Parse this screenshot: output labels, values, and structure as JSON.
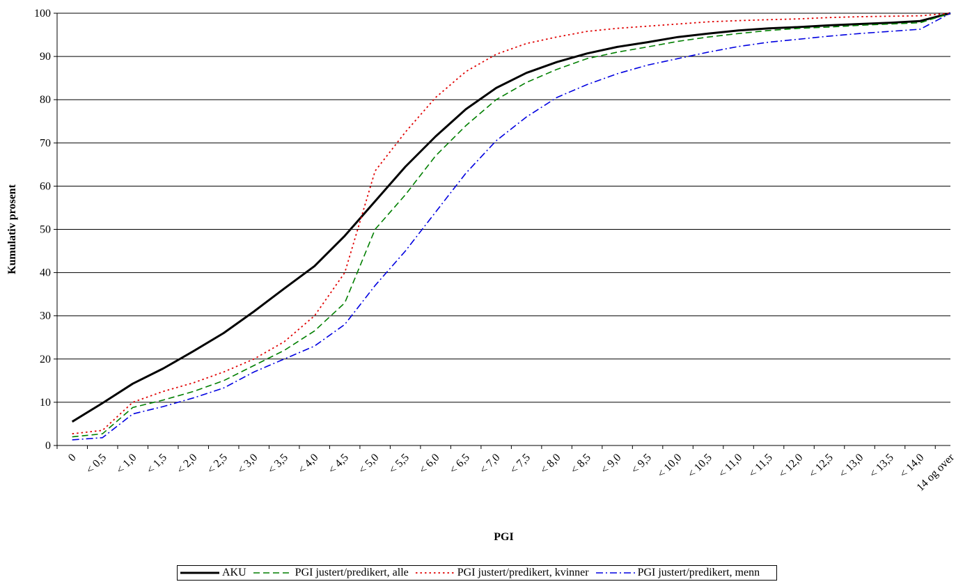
{
  "chart_data": {
    "type": "line",
    "title": "",
    "xlabel": "PGI",
    "ylabel": "Kumulativ prosent",
    "ylim": [
      0,
      100
    ],
    "yticks": [
      0,
      10,
      20,
      30,
      40,
      50,
      60,
      70,
      80,
      90,
      100
    ],
    "grid": true,
    "legend_position": "bottom",
    "categories": [
      "0",
      "< 0,5",
      "< 1,0",
      "< 1,5",
      "< 2,0",
      "< 2,5",
      "< 3,0",
      "< 3,5",
      "< 4,0",
      "< 4,5",
      "< 5,0",
      "< 5,5",
      "< 6,0",
      "< 6,5",
      "< 7,0",
      "< 7,5",
      "< 8,0",
      "< 8,5",
      "< 9,0",
      "< 9,5",
      "< 10,0",
      "< 10,5",
      "< 11,0",
      "< 11,5",
      "< 12,0",
      "< 12,5",
      "< 13,0",
      "< 13,5",
      "< 14,0",
      "14 og over"
    ],
    "series": [
      {
        "name": "AKU",
        "color": "#000000",
        "dash": "solid",
        "values": [
          5.5,
          9.8,
          14.3,
          17.8,
          21.8,
          26.0,
          31.0,
          36.3,
          41.5,
          48.5,
          56.5,
          64.5,
          71.5,
          77.8,
          82.7,
          86.2,
          88.7,
          90.7,
          92.2,
          93.3,
          94.5,
          95.3,
          96.0,
          96.5,
          96.8,
          97.2,
          97.5,
          97.8,
          98.2,
          100.0
        ]
      },
      {
        "name": "PGI justert/predikert, alle",
        "color": "#007f00",
        "dash": "dashed",
        "values": [
          2.0,
          2.7,
          8.8,
          10.5,
          12.5,
          15.0,
          18.5,
          22.0,
          26.5,
          33.0,
          50.0,
          58.0,
          67.0,
          74.0,
          80.0,
          84.0,
          87.0,
          89.5,
          91.0,
          92.2,
          93.5,
          94.5,
          95.3,
          96.0,
          96.5,
          96.8,
          97.2,
          97.5,
          97.8,
          100.0
        ]
      },
      {
        "name": "PGI justert/predikert, kvinner",
        "color": "#e00000",
        "dash": "dotted",
        "values": [
          2.7,
          3.5,
          10.0,
          12.5,
          14.5,
          17.0,
          20.0,
          24.0,
          30.0,
          40.0,
          63.5,
          72.5,
          80.5,
          86.5,
          90.5,
          93.0,
          94.5,
          95.8,
          96.5,
          97.0,
          97.5,
          98.0,
          98.3,
          98.5,
          98.7,
          99.0,
          99.2,
          99.3,
          99.4,
          100.0
        ]
      },
      {
        "name": "PGI justert/predikert, menn",
        "color": "#0000e0",
        "dash": "dashdot",
        "values": [
          1.3,
          1.8,
          7.3,
          9.0,
          11.0,
          13.3,
          17.0,
          20.0,
          23.0,
          28.0,
          37.0,
          45.0,
          54.0,
          63.0,
          70.5,
          76.0,
          80.5,
          83.5,
          86.0,
          88.0,
          89.5,
          91.0,
          92.3,
          93.3,
          94.0,
          94.7,
          95.3,
          95.8,
          96.3,
          100.0
        ]
      }
    ]
  }
}
